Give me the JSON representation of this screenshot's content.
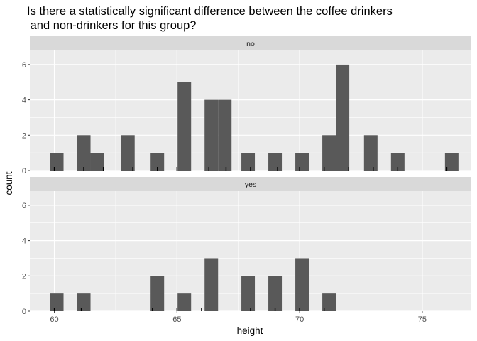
{
  "title": "Is there a statistically significant difference between the coffee drinkers\n and non-drinkers for this group?",
  "colors": {
    "panel_bg": "#EBEBEB",
    "strip_bg": "#D9D9D9",
    "bar_fill": "#595959",
    "grid": "#FFFFFF"
  },
  "chart_data": {
    "type": "bar",
    "xlabel": "height",
    "ylabel": "count",
    "xlim": [
      59,
      77
    ],
    "ylim": [
      0,
      6.8
    ],
    "x_ticks": [
      60,
      65,
      70,
      75
    ],
    "y_ticks": [
      0,
      2,
      4,
      6
    ],
    "bin_width": 0.55,
    "facets": [
      {
        "label": "no",
        "bars": [
          {
            "x": 60.1,
            "count": 1
          },
          {
            "x": 61.2,
            "count": 2
          },
          {
            "x": 61.75,
            "count": 1
          },
          {
            "x": 63.0,
            "count": 2
          },
          {
            "x": 64.2,
            "count": 1
          },
          {
            "x": 65.3,
            "count": 5
          },
          {
            "x": 66.4,
            "count": 4
          },
          {
            "x": 66.95,
            "count": 4
          },
          {
            "x": 67.9,
            "count": 1
          },
          {
            "x": 69.0,
            "count": 1
          },
          {
            "x": 70.1,
            "count": 1
          },
          {
            "x": 71.2,
            "count": 2
          },
          {
            "x": 71.75,
            "count": 6
          },
          {
            "x": 72.9,
            "count": 2
          },
          {
            "x": 74.0,
            "count": 1
          },
          {
            "x": 76.2,
            "count": 1
          }
        ]
      },
      {
        "label": "yes",
        "bars": [
          {
            "x": 60.1,
            "count": 1
          },
          {
            "x": 61.2,
            "count": 1
          },
          {
            "x": 64.2,
            "count": 2
          },
          {
            "x": 65.3,
            "count": 1
          },
          {
            "x": 66.4,
            "count": 3
          },
          {
            "x": 67.9,
            "count": 2
          },
          {
            "x": 69.0,
            "count": 2
          },
          {
            "x": 70.1,
            "count": 3
          },
          {
            "x": 71.2,
            "count": 1
          }
        ]
      }
    ],
    "rug": [
      {
        "facet": "no",
        "x": [
          60.0,
          61.2,
          62.0,
          63.2,
          64.2,
          65.0,
          66.3,
          67.0,
          68.0,
          69.1,
          70.0,
          71.0,
          72.0,
          73.0,
          74.0,
          76.0
        ]
      },
      {
        "facet": "yes",
        "x": [
          60.0,
          61.1,
          64.0,
          65.0,
          66.0,
          68.0,
          69.0,
          70.0,
          71.0
        ]
      }
    ]
  }
}
